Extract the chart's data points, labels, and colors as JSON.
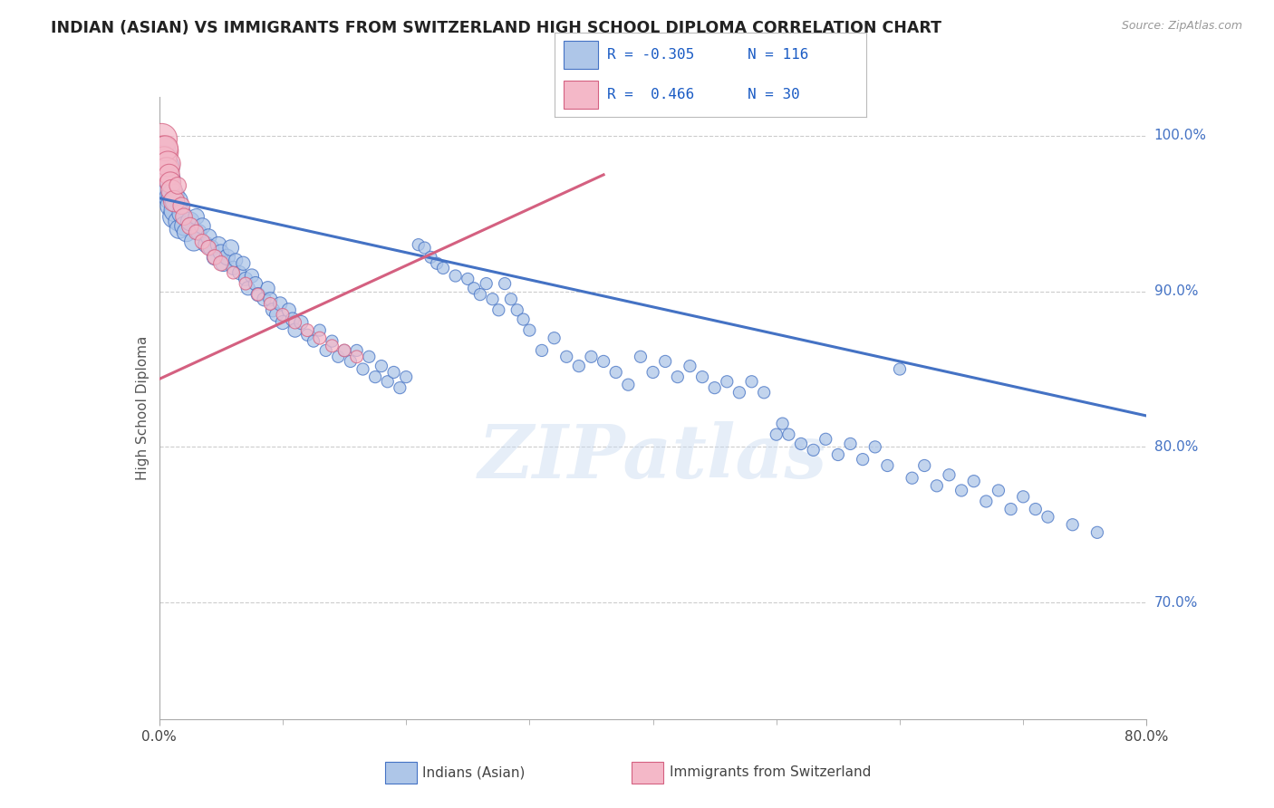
{
  "title": "INDIAN (ASIAN) VS IMMIGRANTS FROM SWITZERLAND HIGH SCHOOL DIPLOMA CORRELATION CHART",
  "source": "Source: ZipAtlas.com",
  "ylabel": "High School Diploma",
  "xlim": [
    0.0,
    0.8
  ],
  "ylim": [
    0.625,
    1.025
  ],
  "ytick_positions": [
    0.7,
    0.8,
    0.9,
    1.0
  ],
  "ytick_labels": [
    "70.0%",
    "80.0%",
    "90.0%",
    "100.0%"
  ],
  "blue_color": "#aec6e8",
  "pink_color": "#f4b8c8",
  "line_blue": "#4472c4",
  "line_pink": "#d46080",
  "watermark": "ZIPatlas",
  "blue_line_x": [
    0.0,
    0.8
  ],
  "blue_line_y": [
    0.96,
    0.82
  ],
  "pink_line_x": [
    -0.01,
    0.36
  ],
  "pink_line_y": [
    0.84,
    0.975
  ],
  "blue_scatter": [
    [
      0.002,
      0.99
    ],
    [
      0.003,
      0.985
    ],
    [
      0.004,
      0.975
    ],
    [
      0.005,
      0.98
    ],
    [
      0.006,
      0.968
    ],
    [
      0.007,
      0.965
    ],
    [
      0.008,
      0.972
    ],
    [
      0.009,
      0.96
    ],
    [
      0.01,
      0.955
    ],
    [
      0.011,
      0.962
    ],
    [
      0.012,
      0.948
    ],
    [
      0.013,
      0.952
    ],
    [
      0.014,
      0.958
    ],
    [
      0.015,
      0.945
    ],
    [
      0.016,
      0.94
    ],
    [
      0.018,
      0.95
    ],
    [
      0.02,
      0.942
    ],
    [
      0.022,
      0.938
    ],
    [
      0.025,
      0.945
    ],
    [
      0.028,
      0.932
    ],
    [
      0.03,
      0.948
    ],
    [
      0.032,
      0.938
    ],
    [
      0.035,
      0.942
    ],
    [
      0.038,
      0.93
    ],
    [
      0.04,
      0.935
    ],
    [
      0.042,
      0.928
    ],
    [
      0.045,
      0.922
    ],
    [
      0.048,
      0.93
    ],
    [
      0.05,
      0.925
    ],
    [
      0.052,
      0.918
    ],
    [
      0.055,
      0.922
    ],
    [
      0.058,
      0.928
    ],
    [
      0.06,
      0.915
    ],
    [
      0.062,
      0.92
    ],
    [
      0.065,
      0.912
    ],
    [
      0.068,
      0.918
    ],
    [
      0.07,
      0.908
    ],
    [
      0.072,
      0.902
    ],
    [
      0.075,
      0.91
    ],
    [
      0.078,
      0.905
    ],
    [
      0.08,
      0.898
    ],
    [
      0.085,
      0.895
    ],
    [
      0.088,
      0.902
    ],
    [
      0.09,
      0.895
    ],
    [
      0.092,
      0.888
    ],
    [
      0.095,
      0.885
    ],
    [
      0.098,
      0.892
    ],
    [
      0.1,
      0.88
    ],
    [
      0.105,
      0.888
    ],
    [
      0.108,
      0.882
    ],
    [
      0.11,
      0.875
    ],
    [
      0.115,
      0.88
    ],
    [
      0.12,
      0.872
    ],
    [
      0.125,
      0.868
    ],
    [
      0.13,
      0.875
    ],
    [
      0.135,
      0.862
    ],
    [
      0.14,
      0.868
    ],
    [
      0.145,
      0.858
    ],
    [
      0.15,
      0.862
    ],
    [
      0.155,
      0.855
    ],
    [
      0.16,
      0.862
    ],
    [
      0.165,
      0.85
    ],
    [
      0.17,
      0.858
    ],
    [
      0.175,
      0.845
    ],
    [
      0.18,
      0.852
    ],
    [
      0.185,
      0.842
    ],
    [
      0.19,
      0.848
    ],
    [
      0.195,
      0.838
    ],
    [
      0.2,
      0.845
    ],
    [
      0.21,
      0.93
    ],
    [
      0.215,
      0.928
    ],
    [
      0.22,
      0.922
    ],
    [
      0.225,
      0.918
    ],
    [
      0.23,
      0.915
    ],
    [
      0.24,
      0.91
    ],
    [
      0.25,
      0.908
    ],
    [
      0.255,
      0.902
    ],
    [
      0.26,
      0.898
    ],
    [
      0.265,
      0.905
    ],
    [
      0.27,
      0.895
    ],
    [
      0.275,
      0.888
    ],
    [
      0.28,
      0.905
    ],
    [
      0.285,
      0.895
    ],
    [
      0.29,
      0.888
    ],
    [
      0.295,
      0.882
    ],
    [
      0.3,
      0.875
    ],
    [
      0.31,
      0.862
    ],
    [
      0.32,
      0.87
    ],
    [
      0.33,
      0.858
    ],
    [
      0.34,
      0.852
    ],
    [
      0.35,
      0.858
    ],
    [
      0.36,
      0.855
    ],
    [
      0.37,
      0.848
    ],
    [
      0.38,
      0.84
    ],
    [
      0.39,
      0.858
    ],
    [
      0.4,
      0.848
    ],
    [
      0.41,
      0.855
    ],
    [
      0.42,
      0.845
    ],
    [
      0.43,
      0.852
    ],
    [
      0.44,
      0.845
    ],
    [
      0.45,
      0.838
    ],
    [
      0.46,
      0.842
    ],
    [
      0.47,
      0.835
    ],
    [
      0.48,
      0.842
    ],
    [
      0.49,
      0.835
    ],
    [
      0.5,
      0.808
    ],
    [
      0.505,
      0.815
    ],
    [
      0.51,
      0.808
    ],
    [
      0.52,
      0.802
    ],
    [
      0.53,
      0.798
    ],
    [
      0.54,
      0.805
    ],
    [
      0.55,
      0.795
    ],
    [
      0.56,
      0.802
    ],
    [
      0.57,
      0.792
    ],
    [
      0.58,
      0.8
    ],
    [
      0.59,
      0.788
    ],
    [
      0.6,
      0.85
    ],
    [
      0.61,
      0.78
    ],
    [
      0.62,
      0.788
    ],
    [
      0.63,
      0.775
    ],
    [
      0.64,
      0.782
    ],
    [
      0.65,
      0.772
    ],
    [
      0.66,
      0.778
    ],
    [
      0.67,
      0.765
    ],
    [
      0.68,
      0.772
    ],
    [
      0.69,
      0.76
    ],
    [
      0.7,
      0.768
    ],
    [
      0.71,
      0.76
    ],
    [
      0.72,
      0.755
    ],
    [
      0.74,
      0.75
    ],
    [
      0.76,
      0.745
    ]
  ],
  "pink_scatter": [
    [
      0.002,
      0.998
    ],
    [
      0.003,
      0.99
    ],
    [
      0.004,
      0.985
    ],
    [
      0.005,
      0.992
    ],
    [
      0.006,
      0.978
    ],
    [
      0.007,
      0.982
    ],
    [
      0.008,
      0.975
    ],
    [
      0.009,
      0.97
    ],
    [
      0.01,
      0.965
    ],
    [
      0.012,
      0.958
    ],
    [
      0.015,
      0.968
    ],
    [
      0.018,
      0.955
    ],
    [
      0.02,
      0.948
    ],
    [
      0.025,
      0.942
    ],
    [
      0.03,
      0.938
    ],
    [
      0.035,
      0.932
    ],
    [
      0.04,
      0.928
    ],
    [
      0.045,
      0.922
    ],
    [
      0.05,
      0.918
    ],
    [
      0.06,
      0.912
    ],
    [
      0.07,
      0.905
    ],
    [
      0.08,
      0.898
    ],
    [
      0.09,
      0.892
    ],
    [
      0.1,
      0.885
    ],
    [
      0.11,
      0.88
    ],
    [
      0.12,
      0.875
    ],
    [
      0.13,
      0.87
    ],
    [
      0.14,
      0.865
    ],
    [
      0.15,
      0.862
    ],
    [
      0.16,
      0.858
    ]
  ]
}
